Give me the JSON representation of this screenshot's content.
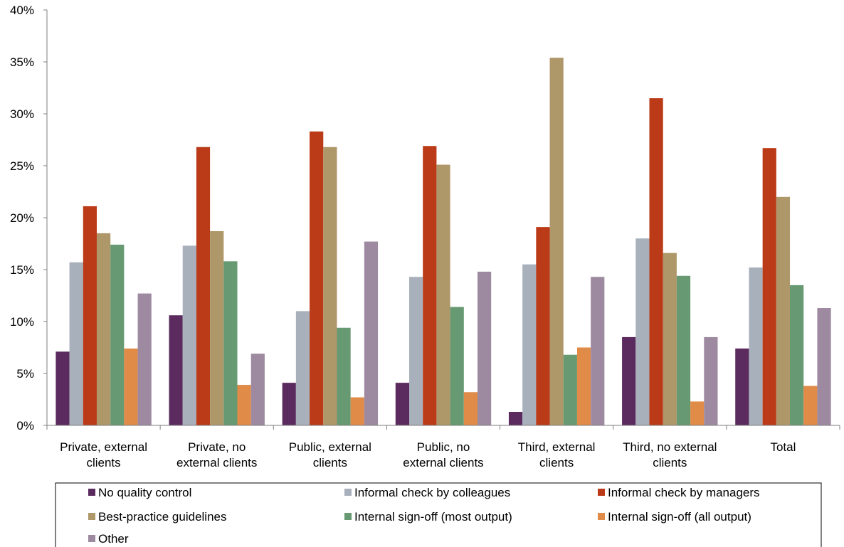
{
  "chart_data": {
    "type": "bar",
    "title": "",
    "xlabel": "",
    "ylabel": "",
    "ylim": [
      0,
      40
    ],
    "yticks": [
      "0%",
      "5%",
      "10%",
      "15%",
      "20%",
      "25%",
      "30%",
      "35%",
      "40%"
    ],
    "grid": false,
    "legend_position": "bottom",
    "categories": [
      [
        "Private, external",
        "clients"
      ],
      [
        "Private, no",
        "external clients"
      ],
      [
        "Public, external",
        "clients"
      ],
      [
        "Public, no",
        "external clients"
      ],
      [
        "Third, external",
        "clients"
      ],
      [
        "Third, no external",
        "clients"
      ],
      [
        "Total"
      ]
    ],
    "series": [
      {
        "name": "No quality control",
        "color": "#5b2a5e",
        "values": [
          7.1,
          10.6,
          4.1,
          4.1,
          1.3,
          8.5,
          7.4
        ]
      },
      {
        "name": "Informal check by colleagues",
        "color": "#a8b0bc",
        "values": [
          15.7,
          17.3,
          11.0,
          14.3,
          15.5,
          18.0,
          15.2
        ]
      },
      {
        "name": "Informal check by managers",
        "color": "#bb3a17",
        "values": [
          21.1,
          26.8,
          28.3,
          26.9,
          19.1,
          31.5,
          26.7
        ]
      },
      {
        "name": "Best-practice guidelines",
        "color": "#ae9769",
        "values": [
          18.5,
          18.7,
          26.8,
          25.1,
          35.4,
          16.6,
          22.0
        ]
      },
      {
        "name": "Internal sign-off (most output)",
        "color": "#679a72",
        "values": [
          17.4,
          15.8,
          9.4,
          11.4,
          6.8,
          14.4,
          13.5
        ]
      },
      {
        "name": "Internal sign-off (all output)",
        "color": "#e08b48",
        "values": [
          7.4,
          3.9,
          2.7,
          3.2,
          7.5,
          2.3,
          3.8
        ]
      },
      {
        "name": "Other",
        "color": "#9e8aa0",
        "values": [
          12.7,
          6.9,
          17.7,
          14.8,
          14.3,
          8.5,
          11.3
        ]
      }
    ]
  }
}
